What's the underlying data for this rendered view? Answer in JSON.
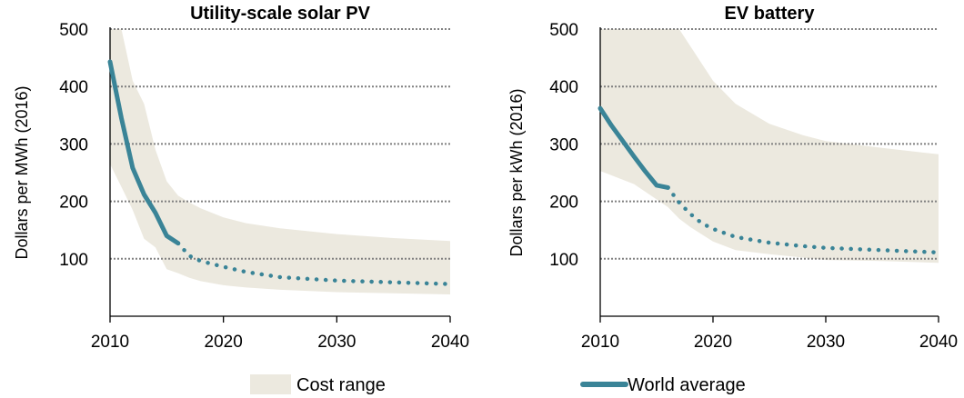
{
  "colors": {
    "range_fill": "#ece9df",
    "line": "#3a8497",
    "grid": "#808080",
    "axis": "#000000"
  },
  "legend": {
    "range_label": "Cost range",
    "average_label": "World average"
  },
  "chart_data": [
    {
      "type": "area",
      "title": "Utility-scale solar PV",
      "xlabel": "",
      "ylabel": "Dollars per MWh (2016)",
      "xlim": [
        2010,
        2040
      ],
      "ylim": [
        0,
        500
      ],
      "x_ticks": [
        2010,
        2020,
        2030,
        2040
      ],
      "y_ticks": [
        100,
        200,
        300,
        400,
        500
      ],
      "grid": "horizontal dotted",
      "series": [
        {
          "name": "Cost range",
          "kind": "band",
          "x": [
            2010,
            2011,
            2012,
            2013,
            2014,
            2015,
            2016,
            2017,
            2018,
            2020,
            2022,
            2025,
            2030,
            2035,
            2040
          ],
          "upper": [
            500,
            500,
            410,
            370,
            290,
            235,
            210,
            198,
            188,
            172,
            162,
            153,
            143,
            136,
            131
          ],
          "lower": [
            265,
            225,
            185,
            135,
            120,
            82,
            75,
            67,
            61,
            54,
            50,
            46,
            42,
            40,
            38
          ]
        },
        {
          "name": "World average",
          "kind": "historical",
          "x": [
            2010,
            2011,
            2012,
            2013,
            2014,
            2015,
            2016
          ],
          "values": [
            443,
            345,
            258,
            212,
            180,
            140,
            127
          ]
        },
        {
          "name": "World average",
          "kind": "projection",
          "x": [
            2016,
            2017,
            2018,
            2020,
            2022,
            2025,
            2030,
            2035,
            2040
          ],
          "values": [
            127,
            105,
            96,
            86,
            77,
            68,
            62,
            59,
            56
          ]
        }
      ]
    },
    {
      "type": "area",
      "title": "EV battery",
      "xlabel": "",
      "ylabel": "Dollars per kWh (2016)",
      "xlim": [
        2010,
        2040
      ],
      "ylim": [
        0,
        500
      ],
      "x_ticks": [
        2010,
        2020,
        2030,
        2040
      ],
      "y_ticks": [
        100,
        200,
        300,
        400,
        500
      ],
      "grid": "horizontal dotted",
      "series": [
        {
          "name": "Cost range",
          "kind": "band",
          "x": [
            2010,
            2013,
            2016,
            2017,
            2018,
            2020,
            2022,
            2025,
            2028,
            2030,
            2035,
            2040
          ],
          "upper": [
            500,
            500,
            500,
            500,
            470,
            410,
            370,
            335,
            315,
            305,
            293,
            282
          ],
          "lower": [
            253,
            230,
            190,
            170,
            155,
            130,
            115,
            108,
            102,
            98,
            96,
            93
          ]
        },
        {
          "name": "World average",
          "kind": "historical",
          "x": [
            2010,
            2011,
            2012,
            2013,
            2014,
            2015,
            2016
          ],
          "values": [
            362,
            332,
            305,
            278,
            252,
            228,
            224
          ]
        },
        {
          "name": "World average",
          "kind": "projection",
          "x": [
            2016,
            2017,
            2018,
            2019,
            2020,
            2022,
            2025,
            2028,
            2030,
            2035,
            2040
          ],
          "values": [
            224,
            198,
            178,
            162,
            152,
            138,
            128,
            122,
            119,
            115,
            111
          ]
        }
      ]
    }
  ]
}
